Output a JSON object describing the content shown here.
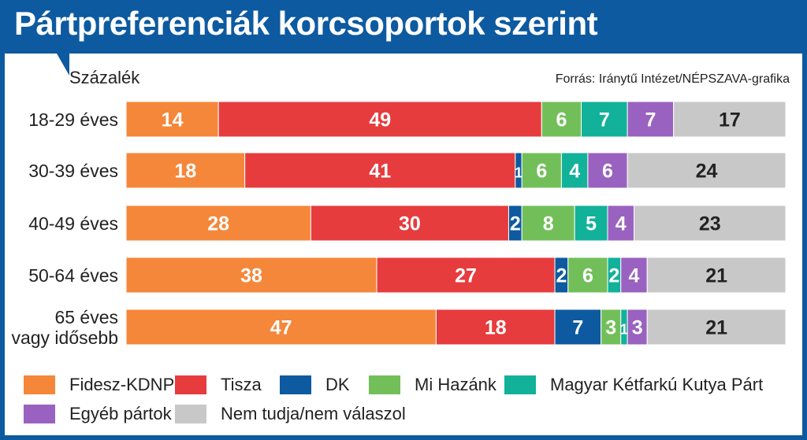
{
  "chart_data": {
    "type": "bar",
    "stacked": true,
    "orientation": "horizontal",
    "title": "Pártpreferenciák korcsoportok szerint",
    "unit_label": "Százalék",
    "source": "Forrás: Iránytű Intézet/NÉPSZAVA-grafika",
    "categories": [
      [
        "18-29 éves"
      ],
      [
        "30-39 éves"
      ],
      [
        "40-49 éves"
      ],
      [
        "50-64 éves"
      ],
      [
        "65 éves",
        "vagy idősebb"
      ]
    ],
    "series": [
      {
        "name": "Fidesz-KDNP",
        "color": "#f5873a",
        "label_color": "#ffffff",
        "values": [
          14,
          18,
          28,
          38,
          47
        ]
      },
      {
        "name": "Tisza",
        "color": "#e63c3e",
        "label_color": "#ffffff",
        "values": [
          49,
          41,
          30,
          27,
          18
        ]
      },
      {
        "name": "DK",
        "color": "#0d5aa0",
        "label_color": "#ffffff",
        "values": [
          0,
          1,
          2,
          2,
          7
        ]
      },
      {
        "name": "Mi Hazánk",
        "color": "#72bf5a",
        "label_color": "#ffffff",
        "values": [
          6,
          6,
          8,
          6,
          3
        ]
      },
      {
        "name": "Magyar Kétfarkú Kutya Párt",
        "color": "#12b19a",
        "label_color": "#ffffff",
        "values": [
          7,
          4,
          5,
          2,
          1
        ]
      },
      {
        "name": "Egyéb pártok",
        "color": "#9a62c0",
        "label_color": "#ffffff",
        "values": [
          7,
          6,
          4,
          4,
          3
        ]
      },
      {
        "name": "Nem tudja/nem válaszol",
        "color": "#c8c8c8",
        "label_color": "#222222",
        "values": [
          17,
          24,
          23,
          21,
          21
        ]
      }
    ],
    "xlim": [
      0,
      100
    ],
    "grid": false,
    "legend_position": "bottom"
  }
}
